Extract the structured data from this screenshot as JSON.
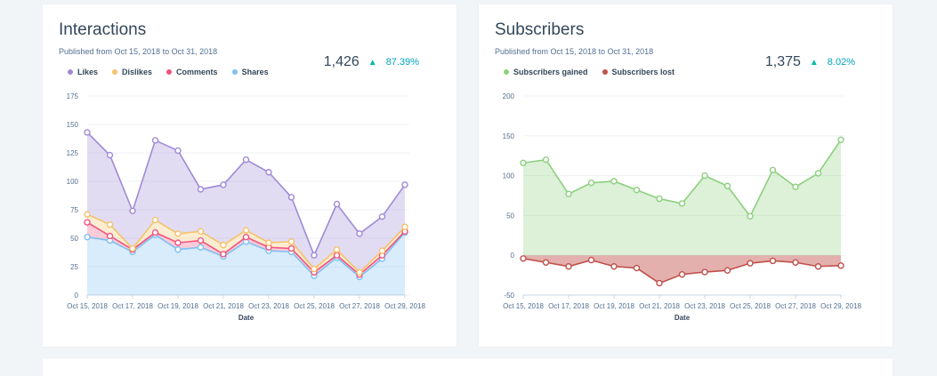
{
  "cards": [
    {
      "title": "Interactions",
      "subtitle": "Published from Oct 15, 2018 to Oct 31, 2018",
      "total": "1,426",
      "change": "87.39%",
      "change_direction": "up"
    },
    {
      "title": "Subscribers",
      "subtitle": "Published from Oct 15, 2018 to Oct 31, 2018",
      "total": "1,375",
      "change": "8.02%",
      "change_direction": "up"
    }
  ],
  "chart_data": [
    {
      "type": "area",
      "stacked": true,
      "xlabel": "Date",
      "ylabel": "",
      "ylim": [
        0,
        175
      ],
      "yticks": [
        0,
        25,
        50,
        75,
        100,
        125,
        150,
        175
      ],
      "x": [
        "Oct 15, 2018",
        "Oct 16, 2018",
        "Oct 17, 2018",
        "Oct 18, 2018",
        "Oct 19, 2018",
        "Oct 20, 2018",
        "Oct 21, 2018",
        "Oct 22, 2018",
        "Oct 23, 2018",
        "Oct 24, 2018",
        "Oct 25, 2018",
        "Oct 26, 2018",
        "Oct 27, 2018",
        "Oct 28, 2018",
        "Oct 29, 2018"
      ],
      "xtick_labels": [
        "Oct 15, 2018",
        "Oct 17, 2018",
        "Oct 19, 2018",
        "Oct 21, 2018",
        "Oct 23, 2018",
        "Oct 25, 2018",
        "Oct 27, 2018",
        "Oct 29, 2018"
      ],
      "grid": true,
      "legend": "top-left",
      "series": [
        {
          "name": "Shares",
          "color": "#7fbff2",
          "values": [
            51,
            48,
            38,
            53,
            40,
            42,
            34,
            47,
            39,
            38,
            17,
            33,
            16,
            32,
            55
          ]
        },
        {
          "name": "Comments",
          "color": "#f2547d",
          "values": [
            13,
            4,
            2,
            2,
            6,
            6,
            2,
            4,
            3,
            3,
            3,
            2,
            2,
            3,
            1
          ]
        },
        {
          "name": "Dislikes",
          "color": "#f5c26b",
          "values": [
            7,
            10,
            1,
            11,
            8,
            8,
            8,
            6,
            4,
            6,
            3,
            5,
            2,
            4,
            4
          ]
        },
        {
          "name": "Likes",
          "color": "#a08ad6",
          "values": [
            72,
            61,
            33,
            70,
            73,
            37,
            53,
            62,
            62,
            39,
            12,
            40,
            34,
            30,
            37
          ]
        }
      ],
      "legend_order": [
        "Likes",
        "Dislikes",
        "Comments",
        "Shares"
      ]
    },
    {
      "type": "area",
      "stacked": false,
      "xlabel": "Date",
      "ylabel": "",
      "ylim": [
        -50,
        200
      ],
      "yticks": [
        -50,
        0,
        50,
        100,
        150,
        200
      ],
      "x": [
        "Oct 15, 2018",
        "Oct 16, 2018",
        "Oct 17, 2018",
        "Oct 18, 2018",
        "Oct 19, 2018",
        "Oct 20, 2018",
        "Oct 21, 2018",
        "Oct 22, 2018",
        "Oct 23, 2018",
        "Oct 24, 2018",
        "Oct 25, 2018",
        "Oct 26, 2018",
        "Oct 27, 2018",
        "Oct 28, 2018",
        "Oct 29, 2018"
      ],
      "xtick_labels": [
        "Oct 15, 2018",
        "Oct 17, 2018",
        "Oct 19, 2018",
        "Oct 21, 2018",
        "Oct 23, 2018",
        "Oct 25, 2018",
        "Oct 27, 2018",
        "Oct 29, 2018"
      ],
      "grid": true,
      "legend": "top-left",
      "series": [
        {
          "name": "Subscribers gained",
          "color": "#8ccf7e",
          "values": [
            116,
            120,
            77,
            91,
            93,
            82,
            71,
            65,
            100,
            87,
            49,
            107,
            86,
            103,
            145
          ]
        },
        {
          "name": "Subscribers lost",
          "color": "#c0504a",
          "values": [
            -4,
            -9,
            -14,
            -6,
            -14,
            -16,
            -35,
            -24,
            -21,
            -19,
            -10,
            -7,
            -9,
            -14,
            -13
          ]
        }
      ],
      "legend_order": [
        "Subscribers gained",
        "Subscribers lost"
      ]
    }
  ]
}
